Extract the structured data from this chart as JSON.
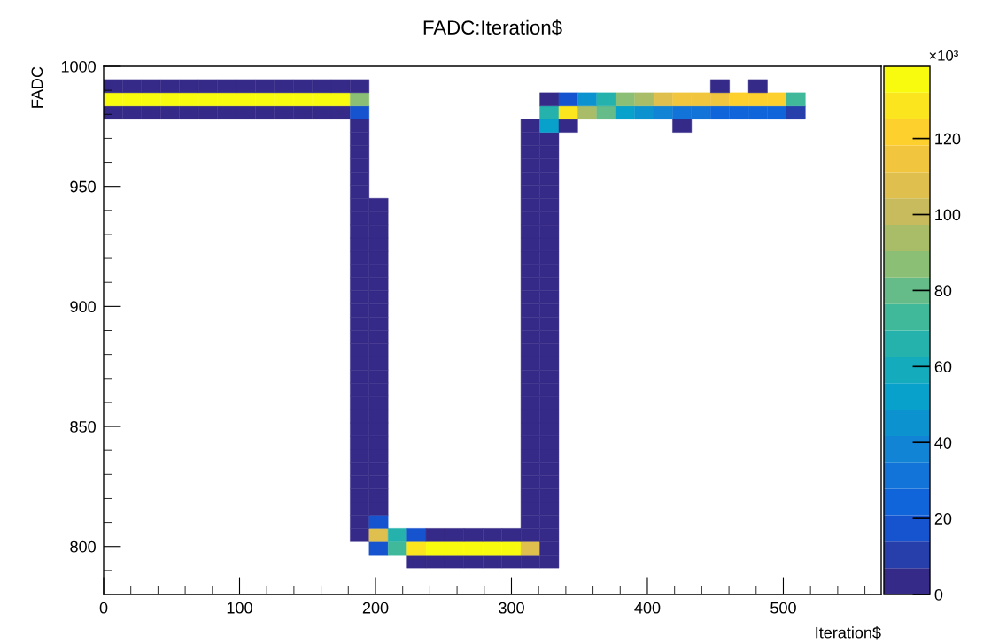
{
  "chart_data": {
    "type": "heatmap",
    "title": "FADC:Iteration$",
    "xlabel": "Iteration$",
    "ylabel": "FADC",
    "clabel": "×10³",
    "xlim": [
      0,
      572
    ],
    "ylim": [
      780,
      1000
    ],
    "xticks": [
      0,
      {
        "value": 20,
        "label": null
      },
      {
        "value": 40,
        "label": null
      },
      {
        "value": 60,
        "label": null
      },
      {
        "value": 80,
        "label": null
      },
      100,
      {
        "value": 120,
        "label": null
      },
      {
        "value": 140,
        "label": null
      },
      {
        "value": 160,
        "label": null
      },
      {
        "value": 180,
        "label": null
      },
      200,
      {
        "value": 220,
        "label": null
      },
      {
        "value": 240,
        "label": null
      },
      {
        "value": 260,
        "label": null
      },
      {
        "value": 280,
        "label": null
      },
      300,
      {
        "value": 320,
        "label": null
      },
      {
        "value": 340,
        "label": null
      },
      {
        "value": 360,
        "label": null
      },
      {
        "value": 380,
        "label": null
      },
      400,
      {
        "value": 420,
        "label": null
      },
      {
        "value": 440,
        "label": null
      },
      {
        "value": 460,
        "label": null
      },
      {
        "value": 480,
        "label": null
      },
      500,
      {
        "value": 520,
        "label": null
      },
      {
        "value": 540,
        "label": null
      },
      {
        "value": 560,
        "label": null
      }
    ],
    "yticks": [
      {
        "value": 790,
        "label": null
      },
      800,
      {
        "value": 810,
        "label": null
      },
      {
        "value": 820,
        "label": null
      },
      {
        "value": 830,
        "label": null
      },
      {
        "value": 840,
        "label": null
      },
      850,
      {
        "value": 860,
        "label": null
      },
      {
        "value": 870,
        "label": null
      },
      {
        "value": 880,
        "label": null
      },
      {
        "value": 890,
        "label": null
      },
      900,
      {
        "value": 910,
        "label": null
      },
      {
        "value": 920,
        "label": null
      },
      {
        "value": 930,
        "label": null
      },
      {
        "value": 940,
        "label": null
      },
      950,
      {
        "value": 960,
        "label": null
      },
      {
        "value": 970,
        "label": null
      },
      {
        "value": 980,
        "label": null
      },
      {
        "value": 990,
        "label": null
      },
      1000
    ],
    "clim": [
      0,
      139
    ],
    "cticks": [
      0,
      20,
      40,
      60,
      80,
      100,
      120
    ],
    "grid": false,
    "y": [
      991.75,
      986.25,
      980.75,
      975.25,
      969.75,
      964.25,
      958.75,
      953.25,
      947.75,
      942.25,
      936.75,
      931.25,
      925.75,
      920.25,
      914.75,
      909.25,
      903.75,
      898.25,
      892.75,
      887.25,
      881.75,
      876.25,
      870.75,
      865.25,
      859.75,
      854.25,
      848.75,
      843.25,
      837.75,
      832.25,
      826.75,
      821.25,
      815.75,
      810.25,
      804.75,
      799.25,
      793.75
    ],
    "cells": [
      [
        3,
        3,
        3,
        3,
        3,
        3,
        3,
        3,
        3,
        3,
        3,
        3,
        3,
        3,
        null,
        null,
        null,
        null,
        null,
        null,
        null,
        null,
        null,
        null,
        null,
        null,
        null,
        null,
        null,
        null,
        null,
        null,
        3,
        null,
        3,
        null,
        null,
        null,
        null,
        null,
        null
      ],
      [
        135,
        135,
        135,
        135,
        135,
        135,
        135,
        135,
        135,
        135,
        135,
        135,
        135,
        85,
        null,
        null,
        null,
        null,
        null,
        null,
        null,
        null,
        null,
        3,
        18,
        45,
        68,
        90,
        95,
        105,
        112,
        118,
        118,
        125,
        125,
        125,
        75,
        null,
        null,
        null,
        null
      ],
      [
        3,
        3,
        3,
        3,
        3,
        3,
        3,
        3,
        3,
        3,
        3,
        3,
        3,
        15,
        null,
        null,
        null,
        null,
        null,
        null,
        null,
        null,
        null,
        65,
        128,
        95,
        78,
        50,
        45,
        40,
        32,
        28,
        25,
        22,
        22,
        22,
        12,
        null,
        null,
        null,
        null
      ],
      [
        null,
        null,
        null,
        null,
        null,
        null,
        null,
        null,
        null,
        null,
        null,
        null,
        null,
        3,
        null,
        null,
        null,
        null,
        null,
        null,
        null,
        null,
        3,
        55,
        3,
        null,
        null,
        null,
        null,
        null,
        3,
        null,
        null,
        null,
        null,
        null,
        null,
        null,
        null,
        null,
        null
      ],
      [
        null,
        null,
        null,
        null,
        null,
        null,
        null,
        null,
        null,
        null,
        null,
        null,
        null,
        3,
        null,
        null,
        null,
        null,
        null,
        null,
        null,
        null,
        3,
        3,
        null,
        null,
        null,
        null,
        null,
        null,
        null,
        null,
        null,
        null,
        null,
        null,
        null,
        null,
        null,
        null,
        null
      ],
      [
        null,
        null,
        null,
        null,
        null,
        null,
        null,
        null,
        null,
        null,
        null,
        null,
        null,
        3,
        null,
        null,
        null,
        null,
        null,
        null,
        null,
        null,
        3,
        3,
        null,
        null,
        null,
        null,
        null,
        null,
        null,
        null,
        null,
        null,
        null,
        null,
        null,
        null,
        null,
        null,
        null
      ],
      [
        null,
        null,
        null,
        null,
        null,
        null,
        null,
        null,
        null,
        null,
        null,
        null,
        null,
        3,
        null,
        null,
        null,
        null,
        null,
        null,
        null,
        null,
        3,
        3,
        null,
        null,
        null,
        null,
        null,
        null,
        null,
        null,
        null,
        null,
        null,
        null,
        null,
        null,
        null,
        null,
        null
      ],
      [
        null,
        null,
        null,
        null,
        null,
        null,
        null,
        null,
        null,
        null,
        null,
        null,
        null,
        3,
        null,
        null,
        null,
        null,
        null,
        null,
        null,
        null,
        3,
        3,
        null,
        null,
        null,
        null,
        null,
        null,
        null,
        null,
        null,
        null,
        null,
        null,
        null,
        null,
        null,
        null,
        null
      ],
      [
        null,
        null,
        null,
        null,
        null,
        null,
        null,
        null,
        null,
        null,
        null,
        null,
        null,
        3,
        null,
        null,
        null,
        null,
        null,
        null,
        null,
        null,
        3,
        3,
        null,
        null,
        null,
        null,
        null,
        null,
        null,
        null,
        null,
        null,
        null,
        null,
        null,
        null,
        null,
        null,
        null
      ],
      [
        null,
        null,
        null,
        null,
        null,
        null,
        null,
        null,
        null,
        null,
        null,
        null,
        null,
        3,
        3,
        null,
        null,
        null,
        null,
        null,
        null,
        null,
        3,
        3,
        null,
        null,
        null,
        null,
        null,
        null,
        null,
        null,
        null,
        null,
        null,
        null,
        null,
        null,
        null,
        null,
        null
      ],
      [
        null,
        null,
        null,
        null,
        null,
        null,
        null,
        null,
        null,
        null,
        null,
        null,
        null,
        3,
        3,
        null,
        null,
        null,
        null,
        null,
        null,
        null,
        3,
        3,
        null,
        null,
        null,
        null,
        null,
        null,
        null,
        null,
        null,
        null,
        null,
        null,
        null,
        null,
        null,
        null,
        null
      ],
      [
        null,
        null,
        null,
        null,
        null,
        null,
        null,
        null,
        null,
        null,
        null,
        null,
        null,
        3,
        3,
        null,
        null,
        null,
        null,
        null,
        null,
        null,
        3,
        3,
        null,
        null,
        null,
        null,
        null,
        null,
        null,
        null,
        null,
        null,
        null,
        null,
        null,
        null,
        null,
        null,
        null
      ],
      [
        null,
        null,
        null,
        null,
        null,
        null,
        null,
        null,
        null,
        null,
        null,
        null,
        null,
        3,
        3,
        null,
        null,
        null,
        null,
        null,
        null,
        null,
        3,
        3,
        null,
        null,
        null,
        null,
        null,
        null,
        null,
        null,
        null,
        null,
        null,
        null,
        null,
        null,
        null,
        null,
        null
      ],
      [
        null,
        null,
        null,
        null,
        null,
        null,
        null,
        null,
        null,
        null,
        null,
        null,
        null,
        3,
        3,
        null,
        null,
        null,
        null,
        null,
        null,
        null,
        3,
        3,
        null,
        null,
        null,
        null,
        null,
        null,
        null,
        null,
        null,
        null,
        null,
        null,
        null,
        null,
        null,
        null,
        null
      ],
      [
        null,
        null,
        null,
        null,
        null,
        null,
        null,
        null,
        null,
        null,
        null,
        null,
        null,
        3,
        3,
        null,
        null,
        null,
        null,
        null,
        null,
        null,
        3,
        3,
        null,
        null,
        null,
        null,
        null,
        null,
        null,
        null,
        null,
        null,
        null,
        null,
        null,
        null,
        null,
        null,
        null
      ],
      [
        null,
        null,
        null,
        null,
        null,
        null,
        null,
        null,
        null,
        null,
        null,
        null,
        null,
        3,
        3,
        null,
        null,
        null,
        null,
        null,
        null,
        null,
        3,
        3,
        null,
        null,
        null,
        null,
        null,
        null,
        null,
        null,
        null,
        null,
        null,
        null,
        null,
        null,
        null,
        null,
        null
      ],
      [
        null,
        null,
        null,
        null,
        null,
        null,
        null,
        null,
        null,
        null,
        null,
        null,
        null,
        3,
        3,
        null,
        null,
        null,
        null,
        null,
        null,
        null,
        3,
        3,
        null,
        null,
        null,
        null,
        null,
        null,
        null,
        null,
        null,
        null,
        null,
        null,
        null,
        null,
        null,
        null,
        null
      ],
      [
        null,
        null,
        null,
        null,
        null,
        null,
        null,
        null,
        null,
        null,
        null,
        null,
        null,
        3,
        3,
        null,
        null,
        null,
        null,
        null,
        null,
        null,
        3,
        3,
        null,
        null,
        null,
        null,
        null,
        null,
        null,
        null,
        null,
        null,
        null,
        null,
        null,
        null,
        null,
        null,
        null
      ],
      [
        null,
        null,
        null,
        null,
        null,
        null,
        null,
        null,
        null,
        null,
        null,
        null,
        null,
        3,
        3,
        null,
        null,
        null,
        null,
        null,
        null,
        null,
        3,
        3,
        null,
        null,
        null,
        null,
        null,
        null,
        null,
        null,
        null,
        null,
        null,
        null,
        null,
        null,
        null,
        null,
        null
      ],
      [
        null,
        null,
        null,
        null,
        null,
        null,
        null,
        null,
        null,
        null,
        null,
        null,
        null,
        3,
        3,
        null,
        null,
        null,
        null,
        null,
        null,
        null,
        3,
        3,
        null,
        null,
        null,
        null,
        null,
        null,
        null,
        null,
        null,
        null,
        null,
        null,
        null,
        null,
        null,
        null,
        null
      ],
      [
        null,
        null,
        null,
        null,
        null,
        null,
        null,
        null,
        null,
        null,
        null,
        null,
        null,
        3,
        3,
        null,
        null,
        null,
        null,
        null,
        null,
        null,
        3,
        3,
        null,
        null,
        null,
        null,
        null,
        null,
        null,
        null,
        null,
        null,
        null,
        null,
        null,
        null,
        null,
        null,
        null
      ],
      [
        null,
        null,
        null,
        null,
        null,
        null,
        null,
        null,
        null,
        null,
        null,
        null,
        null,
        3,
        3,
        null,
        null,
        null,
        null,
        null,
        null,
        null,
        3,
        3,
        null,
        null,
        null,
        null,
        null,
        null,
        null,
        null,
        null,
        null,
        null,
        null,
        null,
        null,
        null,
        null,
        null
      ],
      [
        null,
        null,
        null,
        null,
        null,
        null,
        null,
        null,
        null,
        null,
        null,
        null,
        null,
        3,
        3,
        null,
        null,
        null,
        null,
        null,
        null,
        null,
        3,
        3,
        null,
        null,
        null,
        null,
        null,
        null,
        null,
        null,
        null,
        null,
        null,
        null,
        null,
        null,
        null,
        null,
        null
      ],
      [
        null,
        null,
        null,
        null,
        null,
        null,
        null,
        null,
        null,
        null,
        null,
        null,
        null,
        3,
        3,
        null,
        null,
        null,
        null,
        null,
        null,
        null,
        3,
        3,
        null,
        null,
        null,
        null,
        null,
        null,
        null,
        null,
        null,
        null,
        null,
        null,
        null,
        null,
        null,
        null,
        null
      ],
      [
        null,
        null,
        null,
        null,
        null,
        null,
        null,
        null,
        null,
        null,
        null,
        null,
        null,
        3,
        3,
        null,
        null,
        null,
        null,
        null,
        null,
        null,
        3,
        3,
        null,
        null,
        null,
        null,
        null,
        null,
        null,
        null,
        null,
        null,
        null,
        null,
        null,
        null,
        null,
        null,
        null
      ],
      [
        null,
        null,
        null,
        null,
        null,
        null,
        null,
        null,
        null,
        null,
        null,
        null,
        null,
        3,
        3,
        null,
        null,
        null,
        null,
        null,
        null,
        null,
        3,
        3,
        null,
        null,
        null,
        null,
        null,
        null,
        null,
        null,
        null,
        null,
        null,
        null,
        null,
        null,
        null,
        null,
        null
      ],
      [
        null,
        null,
        null,
        null,
        null,
        null,
        null,
        null,
        null,
        null,
        null,
        null,
        null,
        3,
        3,
        null,
        null,
        null,
        null,
        null,
        null,
        null,
        3,
        3,
        null,
        null,
        null,
        null,
        null,
        null,
        null,
        null,
        null,
        null,
        null,
        null,
        null,
        null,
        null,
        null,
        null
      ],
      [
        null,
        null,
        null,
        null,
        null,
        null,
        null,
        null,
        null,
        null,
        null,
        null,
        null,
        3,
        3,
        null,
        null,
        null,
        null,
        null,
        null,
        null,
        3,
        3,
        null,
        null,
        null,
        null,
        null,
        null,
        null,
        null,
        null,
        null,
        null,
        null,
        null,
        null,
        null,
        null,
        null
      ],
      [
        null,
        null,
        null,
        null,
        null,
        null,
        null,
        null,
        null,
        null,
        null,
        null,
        null,
        3,
        3,
        null,
        null,
        null,
        null,
        null,
        null,
        null,
        3,
        3,
        null,
        null,
        null,
        null,
        null,
        null,
        null,
        null,
        null,
        null,
        null,
        null,
        null,
        null,
        null,
        null,
        null
      ],
      [
        null,
        null,
        null,
        null,
        null,
        null,
        null,
        null,
        null,
        null,
        null,
        null,
        null,
        3,
        3,
        null,
        null,
        null,
        null,
        null,
        null,
        null,
        3,
        3,
        null,
        null,
        null,
        null,
        null,
        null,
        null,
        null,
        null,
        null,
        null,
        null,
        null,
        null,
        null,
        null,
        null
      ],
      [
        null,
        null,
        null,
        null,
        null,
        null,
        null,
        null,
        null,
        null,
        null,
        null,
        null,
        3,
        3,
        null,
        null,
        null,
        null,
        null,
        null,
        null,
        3,
        3,
        null,
        null,
        null,
        null,
        null,
        null,
        null,
        null,
        null,
        null,
        null,
        null,
        null,
        null,
        null,
        null,
        null
      ],
      [
        null,
        null,
        null,
        null,
        null,
        null,
        null,
        null,
        null,
        null,
        null,
        null,
        null,
        3,
        3,
        null,
        null,
        null,
        null,
        null,
        null,
        null,
        3,
        3,
        null,
        null,
        null,
        null,
        null,
        null,
        null,
        null,
        null,
        null,
        null,
        null,
        null,
        null,
        null,
        null,
        null
      ],
      [
        null,
        null,
        null,
        null,
        null,
        null,
        null,
        null,
        null,
        null,
        null,
        null,
        null,
        3,
        3,
        null,
        null,
        null,
        null,
        null,
        null,
        null,
        3,
        3,
        null,
        null,
        null,
        null,
        null,
        null,
        null,
        null,
        null,
        null,
        null,
        null,
        null,
        null,
        null,
        null,
        null
      ],
      [
        null,
        null,
        null,
        null,
        null,
        null,
        null,
        null,
        null,
        null,
        null,
        null,
        null,
        3,
        15,
        null,
        null,
        null,
        null,
        null,
        null,
        null,
        3,
        3,
        null,
        null,
        null,
        null,
        null,
        null,
        null,
        null,
        null,
        null,
        null,
        null,
        null,
        null,
        null,
        null,
        null
      ],
      [
        null,
        null,
        null,
        null,
        null,
        null,
        null,
        null,
        null,
        null,
        null,
        null,
        null,
        3,
        105,
        65,
        15,
        3,
        3,
        3,
        3,
        3,
        3,
        3,
        null,
        null,
        null,
        null,
        null,
        null,
        null,
        null,
        null,
        null,
        null,
        null,
        null,
        null,
        null,
        null,
        null
      ],
      [
        null,
        null,
        null,
        null,
        null,
        null,
        null,
        null,
        null,
        null,
        null,
        null,
        null,
        null,
        20,
        75,
        130,
        138,
        138,
        138,
        138,
        138,
        110,
        3,
        null,
        null,
        null,
        null,
        null,
        null,
        null,
        null,
        null,
        null,
        null,
        null,
        null,
        null,
        null,
        null,
        null
      ],
      [
        null,
        null,
        null,
        null,
        null,
        null,
        null,
        null,
        null,
        null,
        null,
        null,
        null,
        null,
        null,
        null,
        3,
        3,
        3,
        3,
        3,
        3,
        3,
        3,
        null,
        null,
        null,
        null,
        null,
        null,
        null,
        null,
        null,
        null,
        null,
        null,
        null,
        null,
        null,
        null,
        null
      ]
    ]
  }
}
